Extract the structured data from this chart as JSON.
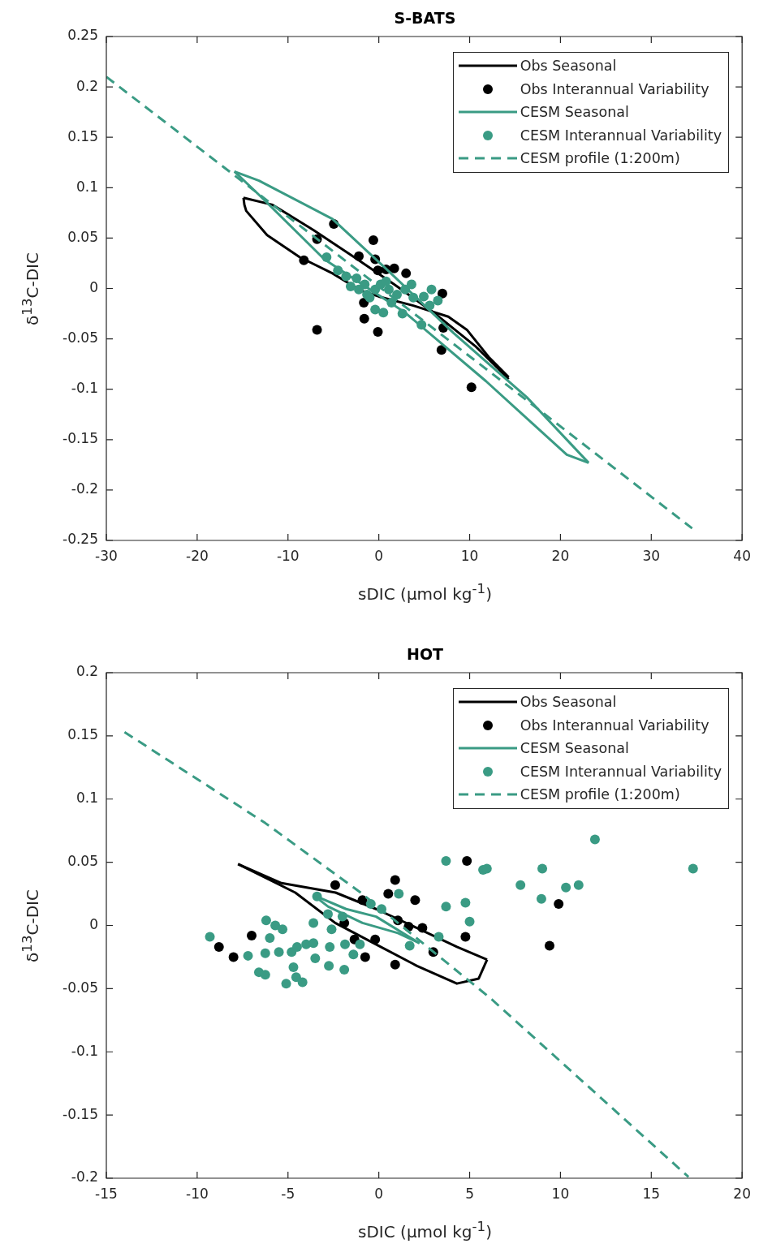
{
  "chart_data": [
    {
      "type": "scatter",
      "title": "S-BATS",
      "xlabel": "sDIC (μmol kg$^{-1}$)",
      "ylabel": "δ$^{13}$C-DIC",
      "xlim": [
        -30,
        40
      ],
      "xticks": [
        -30,
        -20,
        -10,
        0,
        10,
        20,
        30,
        40
      ],
      "ylim": [
        -0.25,
        0.25
      ],
      "yticks": [
        -0.25,
        -0.2,
        -0.15,
        -0.1,
        -0.05,
        0,
        0.05,
        0.1,
        0.15,
        0.2,
        0.25
      ],
      "grid": false,
      "legend": "top right",
      "series": [
        {
          "name": "Obs Seasonal",
          "type": "line",
          "marker": "none",
          "line_style": "solid",
          "color": "#000000",
          "x": [
            -14.9,
            -11.7,
            -7.2,
            -2.7,
            1.7,
            6.2,
            10.6,
            14.3
          ],
          "values": [
            0.09,
            0.083,
            0.058,
            0.031,
            0.004,
            -0.025,
            -0.057,
            -0.09
          ]
        },
        {
          "type": "line",
          "marker": "none",
          "line_style": "solid",
          "color": "#000000",
          "x": [
            -14.9,
            -14.8,
            -14.6,
            -12.3,
            -8.7,
            -5.1,
            -2,
            0,
            3.8,
            7.65,
            9.7,
            12.1,
            14.3
          ],
          "values": [
            0.09,
            0.083,
            0.077,
            0.053,
            0.031,
            0.015,
            -0.002,
            -0.008,
            -0.017,
            -0.028,
            -0.041,
            -0.068,
            -0.088
          ]
        },
        {
          "name": "Obs Interannual Variability",
          "type": "scatter",
          "marker": "circle",
          "color": "#000000",
          "x": [
            -4.95,
            -0.6,
            -6.8,
            -8.25,
            -2.2,
            -0.4,
            -0.1,
            0.8,
            1.7,
            3.0,
            7.0,
            -1.65,
            -1.6,
            -6.8,
            -0.1,
            7.1,
            6.9,
            10.2
          ],
          "values": [
            0.064,
            0.048,
            0.049,
            0.028,
            0.032,
            0.029,
            0.018,
            0.019,
            0.02,
            0.015,
            -0.005,
            -0.014,
            -0.03,
            -0.041,
            -0.043,
            -0.039,
            -0.061,
            -0.098
          ]
        },
        {
          "name": "CESM Seasonal",
          "type": "line",
          "marker": "none",
          "line_style": "solid",
          "color": "#3a9b84",
          "x": [
            -15.9,
            -13.2,
            -5.1,
            1.1,
            8.2,
            16.3,
            23.1
          ],
          "values": [
            0.116,
            0.107,
            0.069,
            0.017,
            -0.044,
            -0.108,
            -0.173
          ]
        },
        {
          "type": "line",
          "marker": "none",
          "line_style": "solid",
          "color": "#3a9b84",
          "x": [
            -15.9,
            -13.2,
            -6.0,
            2.9,
            11.8,
            20.7,
            23.1
          ],
          "values": [
            0.116,
            0.093,
            0.029,
            -0.024,
            -0.092,
            -0.165,
            -0.173
          ]
        },
        {
          "name": "CESM Interannual Variability",
          "type": "scatter",
          "marker": "circle",
          "color": "#3a9b84",
          "x": [
            -5.75,
            -4.5,
            -3.6,
            -3.1,
            -2.45,
            -1.55,
            -1.3,
            -0.4,
            0.2,
            0.8,
            1.1,
            2.0,
            2.9,
            3.6,
            3.8,
            4.95,
            5.8,
            6.5,
            5.6,
            -0.4,
            0.5,
            1.4,
            2.6,
            4.7,
            -1.0,
            -2.2
          ],
          "values": [
            0.031,
            0.018,
            0.012,
            0.002,
            0.01,
            0.004,
            -0.006,
            -0.001,
            0.004,
            0.007,
            -0.001,
            -0.006,
            -0.001,
            0.004,
            -0.009,
            -0.008,
            -0.001,
            -0.012,
            -0.017,
            -0.021,
            -0.024,
            -0.014,
            -0.025,
            -0.036,
            -0.009,
            -0.001
          ]
        },
        {
          "name": "CESM profile (1:200m)",
          "type": "line",
          "marker": "none",
          "line_style": "dashed",
          "color": "#3a9b84",
          "x": [
            -30,
            -15,
            0,
            15,
            34.5
          ],
          "values": [
            0.21,
            0.106,
            0.002,
            -0.102,
            -0.238
          ]
        }
      ]
    },
    {
      "type": "scatter",
      "title": "HOT",
      "xlabel": "sDIC (μmol kg$^{-1}$)",
      "ylabel": "δ$^{13}$C-DIC",
      "xlim": [
        -15,
        20
      ],
      "xticks": [
        -15,
        -10,
        -5,
        0,
        5,
        10,
        15,
        20
      ],
      "ylim": [
        -0.2,
        0.2
      ],
      "yticks": [
        -0.2,
        -0.15,
        -0.1,
        -0.05,
        0,
        0.05,
        0.1,
        0.15,
        0.2
      ],
      "grid": false,
      "legend": "top right",
      "series": [
        {
          "name": "Obs Seasonal",
          "type": "line",
          "marker": "none",
          "line_style": "solid",
          "color": "#000000",
          "x": [
            -7.75,
            -5.36,
            -2.38,
            -0.15,
            2.1,
            4.3,
            5.96
          ],
          "values": [
            0.0485,
            0.0335,
            0.026,
            0.013,
            -0.002,
            -0.017,
            -0.027
          ]
        },
        {
          "type": "line",
          "marker": "none",
          "line_style": "solid",
          "color": "#000000",
          "x": [
            -7.75,
            -4.6,
            -2.4,
            -0.15,
            2.1,
            4.3,
            5.5,
            5.96
          ],
          "values": [
            0.0485,
            0.026,
            0.002,
            -0.015,
            -0.032,
            -0.046,
            -0.042,
            -0.027
          ]
        },
        {
          "name": "Obs Interannual Variability",
          "type": "scatter",
          "marker": "circle",
          "color": "#000000",
          "x": [
            4.85,
            0.9,
            -2.4,
            0.52,
            2.0,
            -0.9,
            -7.0,
            -8.8,
            -8.0,
            -1.34,
            -0.2,
            -0.75,
            0.9,
            1.05,
            1.64,
            2.4,
            4.77,
            3.0,
            -1.9,
            9.9,
            9.4
          ],
          "values": [
            0.051,
            0.036,
            0.032,
            0.025,
            0.02,
            0.02,
            -0.008,
            -0.017,
            -0.025,
            -0.011,
            -0.011,
            -0.025,
            -0.031,
            0.004,
            -0.001,
            -0.002,
            -0.009,
            -0.021,
            0.002,
            0.017,
            -0.016
          ]
        },
        {
          "name": "CESM Seasonal",
          "type": "line",
          "marker": "none",
          "line_style": "solid",
          "color": "#3a9b84",
          "x": [
            -3.6,
            -1.8,
            -0.15,
            2.24
          ],
          "values": [
            0.024,
            0.013,
            0.007,
            -0.014
          ]
        },
        {
          "type": "line",
          "marker": "none",
          "line_style": "solid",
          "color": "#3a9b84",
          "x": [
            -3.6,
            -2.8,
            -0.9,
            1.05,
            2.24
          ],
          "values": [
            0.024,
            0.015,
            0.002,
            -0.006,
            -0.014
          ]
        },
        {
          "name": "CESM Interannual Variability",
          "type": "scatter",
          "marker": "circle",
          "color": "#3a9b84",
          "x": [
            -9.3,
            -6.2,
            -5.7,
            -5.3,
            -6.0,
            -7.2,
            -6.25,
            -5.5,
            -6.6,
            -6.25,
            -5.1,
            -4.55,
            -4.2,
            -4.7,
            -4.8,
            -4.5,
            -4.0,
            -3.6,
            -3.5,
            -3.6,
            -2.7,
            -2.75,
            -2.6,
            -1.9,
            -1.86,
            -1.4,
            -1.04,
            -3.4,
            -2.8,
            -2.0,
            -0.44,
            0.15,
            1.1,
            3.3,
            1.7,
            3.7,
            3.7,
            4.77,
            5.0,
            5.74,
            5.95,
            7.8,
            9.0,
            8.95,
            10.3,
            11.0,
            11.9,
            17.3
          ],
          "values": [
            -0.009,
            0.004,
            0.0,
            -0.003,
            -0.01,
            -0.024,
            -0.022,
            -0.021,
            -0.037,
            -0.039,
            -0.046,
            -0.041,
            -0.045,
            -0.033,
            -0.021,
            -0.017,
            -0.015,
            -0.014,
            -0.026,
            0.002,
            -0.017,
            -0.032,
            -0.003,
            -0.035,
            -0.015,
            -0.023,
            -0.015,
            0.023,
            0.009,
            0.007,
            0.017,
            0.013,
            0.025,
            -0.009,
            -0.016,
            0.051,
            0.015,
            0.018,
            0.003,
            0.044,
            0.045,
            0.032,
            0.045,
            0.021,
            0.03,
            0.032,
            0.068,
            0.045
          ]
        },
        {
          "name": "CESM profile (1:200m)",
          "type": "line",
          "marker": "none",
          "line_style": "dashed",
          "color": "#3a9b84",
          "x": [
            -14.0,
            -6.25,
            -1.0,
            6.1,
            17.05
          ],
          "values": [
            0.153,
            0.081,
            0.026,
            -0.057,
            -0.199
          ]
        }
      ]
    }
  ]
}
